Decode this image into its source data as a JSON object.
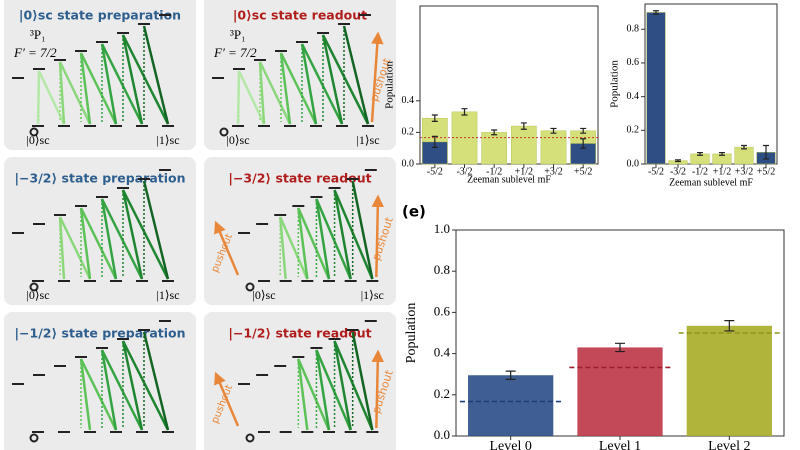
{
  "panels": [
    {
      "title": "|0⟩sc state preparation",
      "title_color": "#2e5f8e",
      "level": "³P₁",
      "f_label": "F′ = 7/2",
      "ground_left": "|0⟩sc",
      "ground_right": "|1⟩sc"
    },
    {
      "title": "|0⟩sc state readout",
      "title_color": "#b01d1d",
      "level": "³P₁",
      "f_label": "F′ = 7/2",
      "ground_left": "|0⟩sc",
      "ground_right": "|1⟩sc",
      "pushout": "pushout"
    },
    {
      "title": "|−3/2⟩ state preparation",
      "title_color": "#2e5f8e",
      "ground_left": "|0⟩sc",
      "ground_right": "|1⟩sc"
    },
    {
      "title": "|−3/2⟩ state readout",
      "title_color": "#b01d1d",
      "ground_left": "|0⟩sc",
      "ground_right": "|1⟩sc",
      "pushout": "pushout",
      "pushout_left": "pushout"
    },
    {
      "title": "|−1/2⟩ state preparation",
      "title_color": "#2e5f8e"
    },
    {
      "title": "|−1/2⟩ state readout",
      "title_color": "#b01d1d",
      "pushout": "pushout",
      "pushout_left": "pushout"
    }
  ],
  "chart_data": [
    {
      "type": "bar",
      "y_label": "Population",
      "x_label": "Zeeman sublevel mF",
      "categories": [
        "-5/2",
        "-3/2",
        "-1/2",
        "+1/2",
        "+3/2",
        "+5/2"
      ],
      "series": [
        {
          "color": "#d6e07a",
          "values": [
            0.29,
            0.33,
            0.2,
            0.24,
            0.21,
            0.21
          ],
          "errors": [
            0.02,
            0.02,
            0.015,
            0.02,
            0.015,
            0.015
          ]
        },
        {
          "color": "#2f4f84",
          "values": [
            0.14,
            null,
            null,
            null,
            null,
            0.13
          ],
          "errors": [
            0.035,
            null,
            null,
            null,
            null,
            0.03
          ]
        }
      ],
      "hlines": [
        {
          "value": 0.167,
          "color": "#c0392b"
        }
      ],
      "ylim": [
        0,
        1.0
      ],
      "yticks": [
        {
          "value": 0,
          "label": "0.0"
        },
        0.2,
        0.4
      ]
    },
    {
      "type": "bar",
      "y_label": "Population",
      "x_label": "Zeeman sublevel mF",
      "categories": [
        "-5/2",
        "-3/2",
        "-1/2",
        "+1/2",
        "+3/2",
        "+5/2"
      ],
      "series": [
        {
          "color": "#d6e07a",
          "values": [
            null,
            0.02,
            0.06,
            0.06,
            0.1,
            null
          ],
          "errors": [
            null,
            0.005,
            0.008,
            0.008,
            0.01,
            null
          ]
        },
        {
          "color": "#2f4f84",
          "values": [
            0.9,
            null,
            null,
            null,
            null,
            0.07
          ],
          "errors": [
            0.01,
            null,
            null,
            null,
            null,
            0.04
          ]
        }
      ],
      "ylim": [
        0,
        0.95
      ],
      "yticks": [
        {
          "value": 0,
          "label": "0.0"
        },
        0.2,
        0.4,
        0.6,
        0.8
      ]
    },
    {
      "type": "bar",
      "panel_label": "(e)",
      "y_label": "Population",
      "categories": [
        "Level 0",
        "Level 1",
        "Level 2"
      ],
      "series": [
        {
          "colors": [
            "#2f5189",
            "#bf3a4a",
            "#a9ae2a"
          ],
          "values": [
            0.295,
            0.43,
            0.535
          ],
          "errors": [
            0.02,
            0.02,
            0.025
          ],
          "references": [
            0.167,
            0.333,
            0.5
          ],
          "reference_colors": [
            "#1f3f7a",
            "#9e1f2e",
            "#8f9418"
          ]
        }
      ],
      "ylim": [
        0,
        1.0
      ],
      "yticks": [
        {
          "value": 0,
          "label": "0.0"
        },
        0.2,
        0.4,
        0.6,
        0.8,
        {
          "value": 1,
          "label": "1.0"
        }
      ]
    }
  ]
}
